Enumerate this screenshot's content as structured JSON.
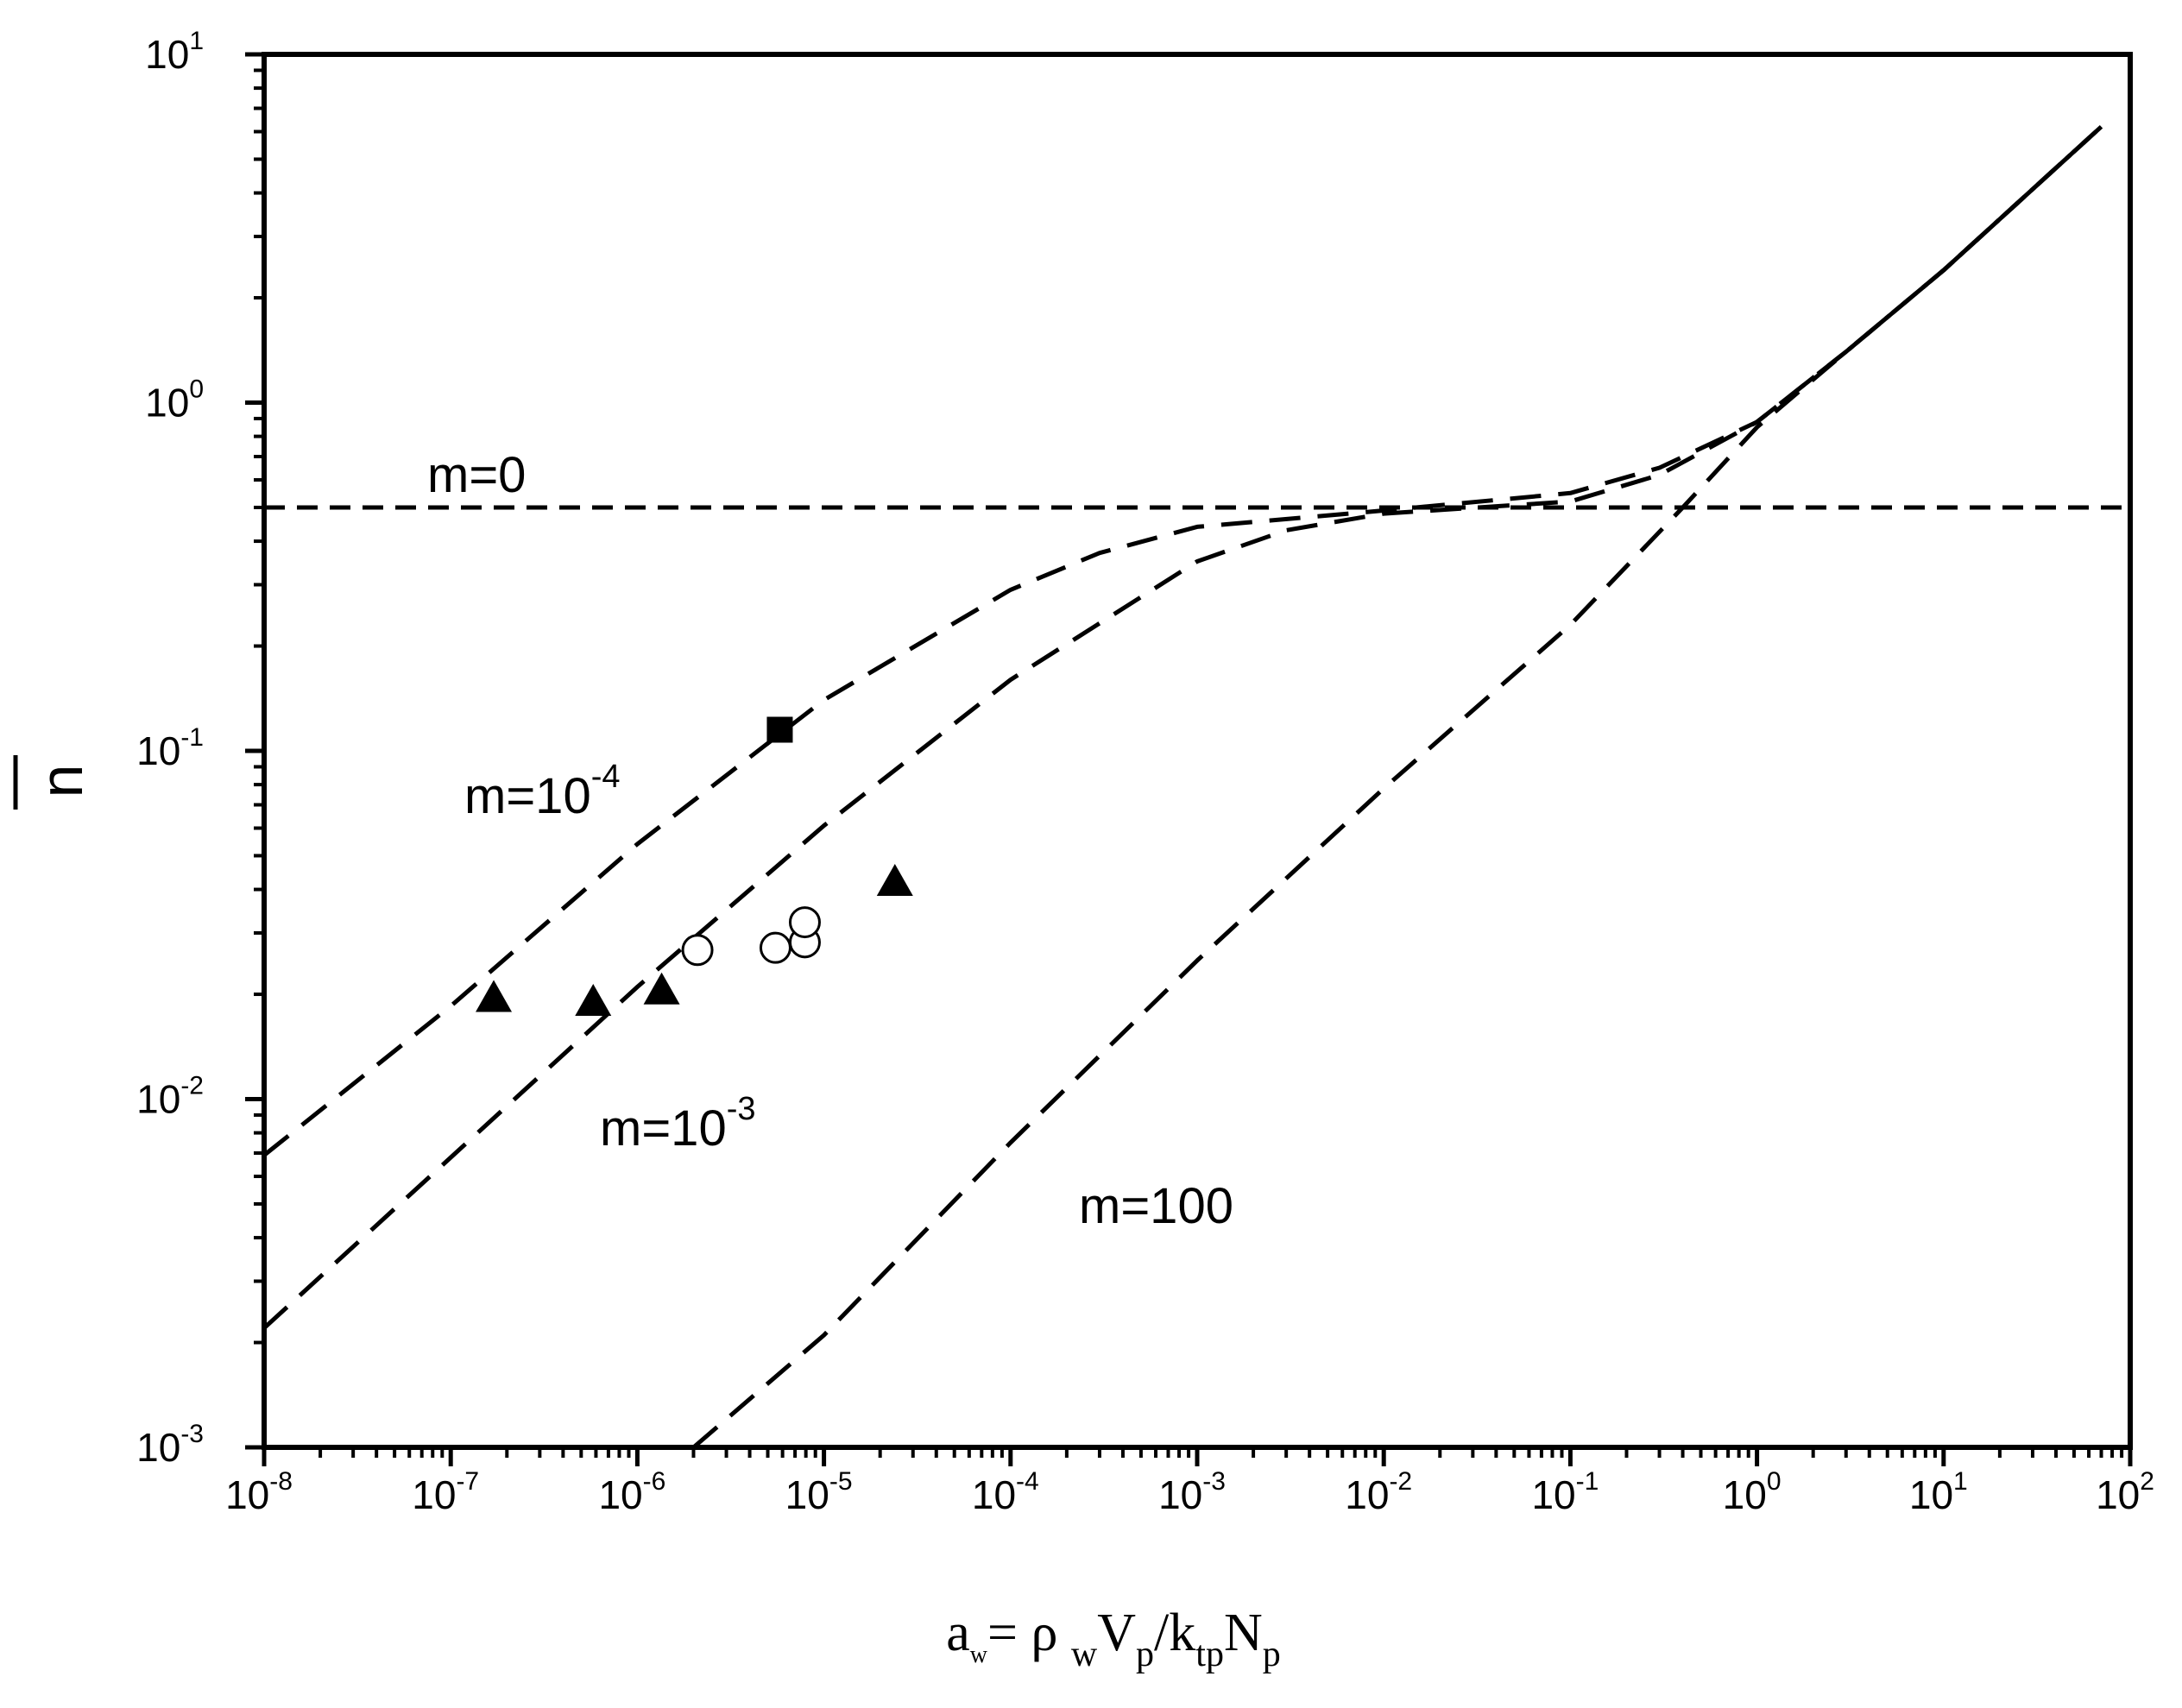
{
  "chart_data": {
    "type": "scatter",
    "title": "",
    "xscale": "log",
    "yscale": "log",
    "xlim": [
      1e-08,
      100
    ],
    "ylim": [
      0.001,
      10
    ],
    "grid": false,
    "x_ticks": [
      {
        "base": "10",
        "exp": "-8"
      },
      {
        "base": "10",
        "exp": "-7"
      },
      {
        "base": "10",
        "exp": "-6"
      },
      {
        "base": "10",
        "exp": "-5"
      },
      {
        "base": "10",
        "exp": "-4"
      },
      {
        "base": "10",
        "exp": "-3"
      },
      {
        "base": "10",
        "exp": "-2"
      },
      {
        "base": "10",
        "exp": "-1"
      },
      {
        "base": "10",
        "exp": "0"
      },
      {
        "base": "10",
        "exp": "1"
      },
      {
        "base": "10",
        "exp": "2"
      }
    ],
    "y_ticks": [
      {
        "base": "10",
        "exp": "-3"
      },
      {
        "base": "10",
        "exp": "-2"
      },
      {
        "base": "10",
        "exp": "-1"
      },
      {
        "base": "10",
        "exp": "0"
      },
      {
        "base": "10",
        "exp": "1"
      }
    ],
    "xlabel": {
      "a": "a",
      "w_sub": "w",
      "eq": "= ρ ",
      "w2": "w",
      "V": "V",
      "p1": "p",
      "slash_k": "/k",
      "tp": "tp",
      "N": "N",
      "p2": "p"
    },
    "ylabel": "n",
    "series": [
      {
        "name": "m=0",
        "style": "dashed",
        "label": {
          "base": "m=0",
          "sup": ""
        },
        "points": [
          [
            1e-08,
            0.5
          ],
          [
            100,
            0.5
          ]
        ]
      },
      {
        "name": "m=10-4",
        "style": "dashed",
        "label": {
          "base": "m=10",
          "sup": "-4"
        },
        "points": [
          [
            1e-08,
            0.0069
          ],
          [
            1e-07,
            0.0185
          ],
          [
            1e-06,
            0.054
          ],
          [
            1e-05,
            0.14
          ],
          [
            0.0001,
            0.29
          ],
          [
            0.0003,
            0.37
          ],
          [
            0.001,
            0.44
          ],
          [
            0.01,
            0.49
          ],
          [
            0.1,
            0.55
          ],
          [
            0.3,
            0.65
          ],
          [
            1,
            0.88
          ],
          [
            3,
            1.4
          ],
          [
            10,
            2.4
          ],
          [
            70,
            6.2
          ]
        ]
      },
      {
        "name": "m=10-3",
        "style": "dashed",
        "label": {
          "base": "m=10",
          "sup": "-3"
        },
        "points": [
          [
            1e-08,
            0.0022
          ],
          [
            1e-07,
            0.0068
          ],
          [
            1e-06,
            0.021
          ],
          [
            1e-05,
            0.061
          ],
          [
            0.0001,
            0.16
          ],
          [
            0.001,
            0.35
          ],
          [
            0.003,
            0.43
          ],
          [
            0.01,
            0.48
          ],
          [
            0.1,
            0.52
          ],
          [
            0.3,
            0.62
          ],
          [
            1,
            0.88
          ],
          [
            3,
            1.4
          ],
          [
            10,
            2.4
          ],
          [
            70,
            6.2
          ]
        ]
      },
      {
        "name": "m=100",
        "style": "dashed",
        "label": {
          "base": "m=100",
          "sup": ""
        },
        "points": [
          [
            2e-06,
            0.001
          ],
          [
            1e-05,
            0.0021
          ],
          [
            0.0001,
            0.0075
          ],
          [
            0.001,
            0.025
          ],
          [
            0.01,
            0.078
          ],
          [
            0.1,
            0.23
          ],
          [
            0.4,
            0.5
          ],
          [
            1,
            0.85
          ],
          [
            3,
            1.4
          ],
          [
            10,
            2.4
          ],
          [
            70,
            6.2
          ]
        ]
      }
    ],
    "markers": [
      {
        "name": "filled-squares",
        "shape": "square",
        "filled": true,
        "points": [
          [
            5.8e-06,
            0.115
          ]
        ]
      },
      {
        "name": "filled-triangles",
        "shape": "triangle",
        "filled": true,
        "points": [
          [
            1.7e-07,
            0.0195
          ],
          [
            5.8e-07,
            0.019
          ],
          [
            1.35e-06,
            0.0205
          ],
          [
            2.4e-05,
            0.042
          ]
        ]
      },
      {
        "name": "open-circles",
        "shape": "circle",
        "filled": false,
        "points": [
          [
            2.1e-06,
            0.0268
          ],
          [
            5.5e-06,
            0.0272
          ],
          [
            7.9e-06,
            0.0282
          ],
          [
            7.9e-06,
            0.0322
          ]
        ]
      }
    ]
  }
}
